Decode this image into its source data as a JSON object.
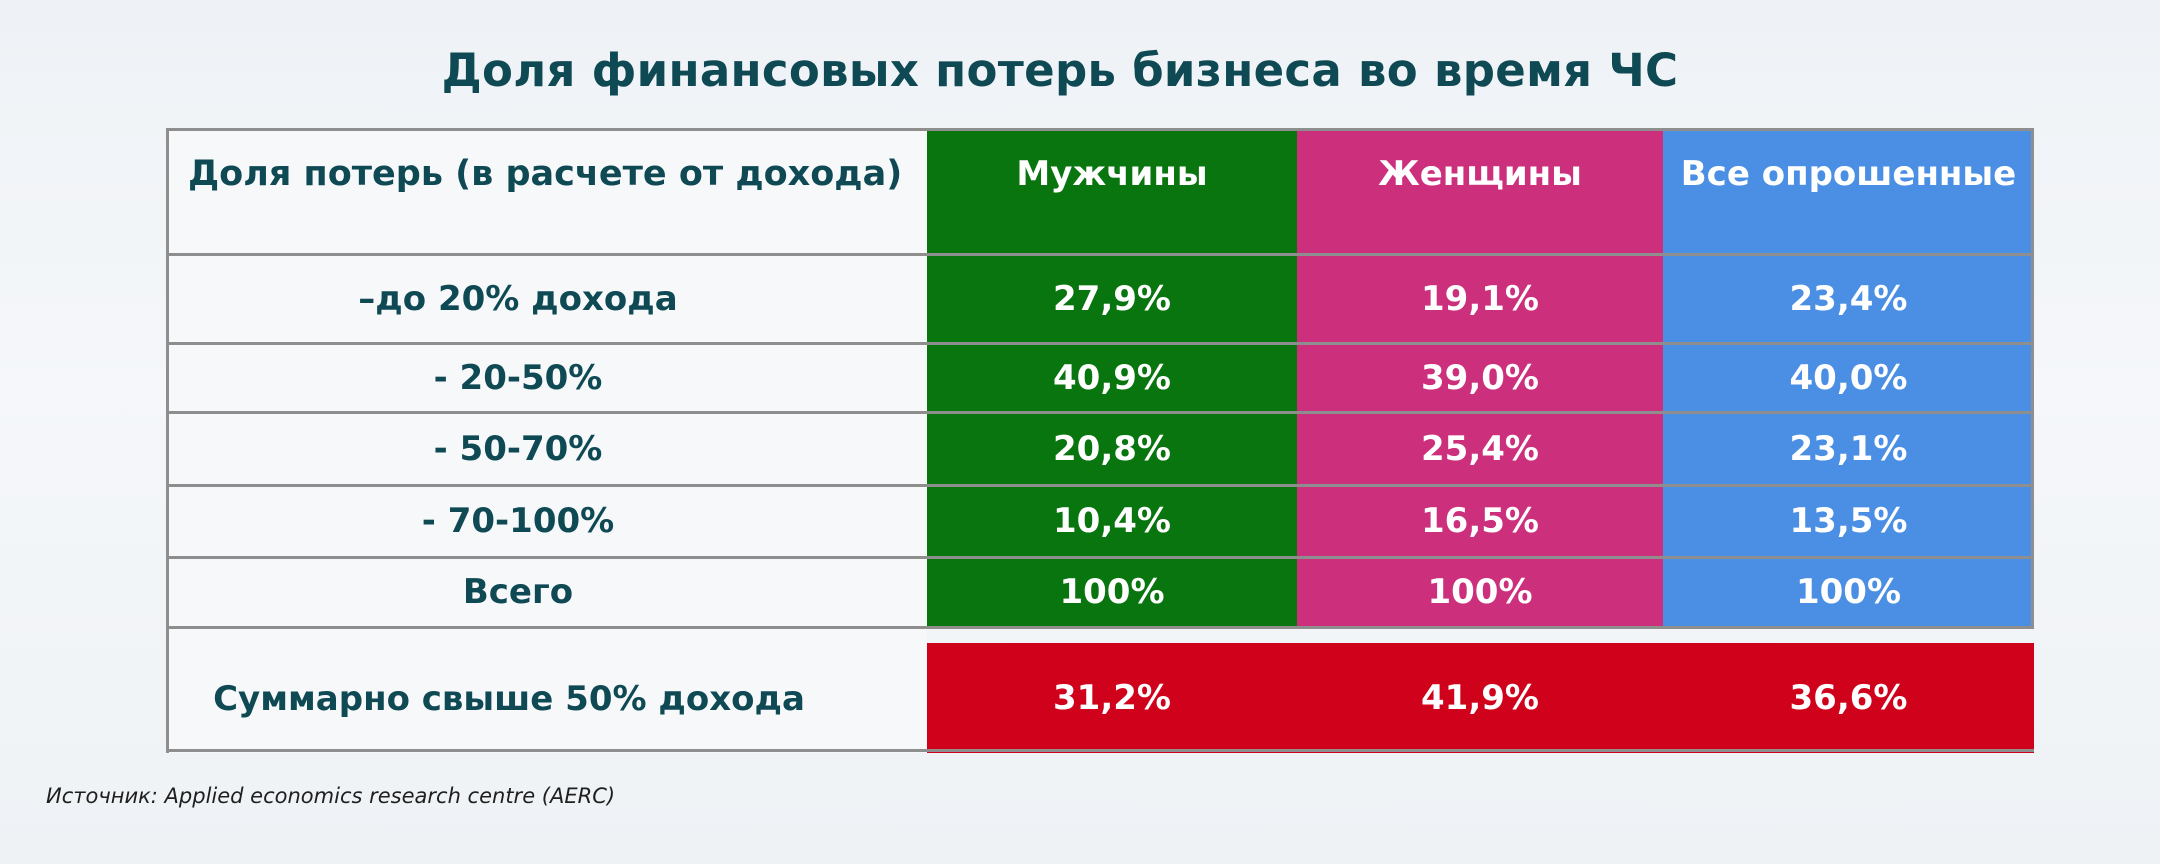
{
  "title": "Доля финансовых потерь бизнеса во время ЧС",
  "source": "Источник:  Applied economics research centre (AERC)",
  "colors": {
    "men": "#08750f",
    "women": "#cc2f7c",
    "all": "#4a8fe3",
    "summary": "#d0021b",
    "text_dark": "#0f4954"
  },
  "chart_data": {
    "type": "table",
    "title": "Доля финансовых потерь бизнеса во время ЧС",
    "header_label": "Доля потерь (в расчете от дохода)",
    "columns": [
      "Мужчины",
      "Женщины",
      "Все опрошенные"
    ],
    "rows": [
      {
        "label": "–до 20% дохода",
        "values": [
          "27,9%",
          "19,1%",
          "23,4%"
        ]
      },
      {
        "label": "- 20-50%",
        "values": [
          "40,9%",
          "39,0%",
          "40,0%"
        ]
      },
      {
        "label": "- 50-70%",
        "values": [
          "20,8%",
          "25,4%",
          "23,1%"
        ]
      },
      {
        "label": "- 70-100%",
        "values": [
          "10,4%",
          "16,5%",
          "13,5%"
        ]
      },
      {
        "label": "Всего",
        "values": [
          "100%",
          "100%",
          "100%"
        ]
      }
    ],
    "summary_row": {
      "label": "Суммарно свыше 50% дохода",
      "values": [
        "31,2%",
        "41,9%",
        "36,6%"
      ]
    }
  }
}
